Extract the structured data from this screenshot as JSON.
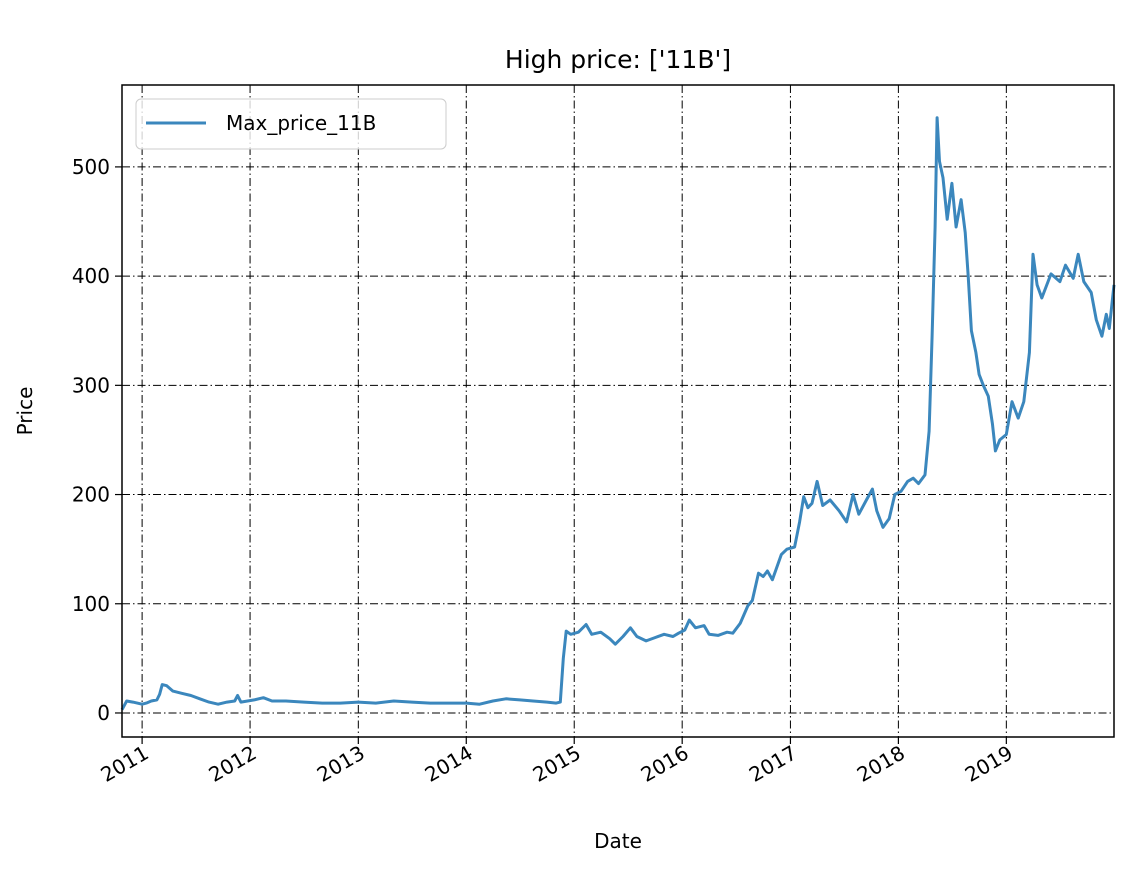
{
  "chart_data": {
    "type": "line",
    "title": "High price: ['11B']",
    "xlabel": "Date",
    "ylabel": "Price",
    "x_type": "date",
    "xlim": [
      "2010-10-25",
      "2019-12-31"
    ],
    "ylim": [
      -22,
      575
    ],
    "x_ticks": [
      "2011-01-01",
      "2012-01-01",
      "2013-01-01",
      "2014-01-01",
      "2015-01-01",
      "2016-01-01",
      "2017-01-01",
      "2018-01-01",
      "2019-01-01"
    ],
    "x_tick_labels": [
      "2011",
      "2012",
      "2013",
      "2014",
      "2015",
      "2016",
      "2017",
      "2018",
      "2019"
    ],
    "y_ticks": [
      0,
      100,
      200,
      300,
      400,
      500
    ],
    "y_tick_labels": [
      "0",
      "100",
      "200",
      "300",
      "400",
      "500"
    ],
    "grid": true,
    "legend_position": "top-left",
    "series_color": "#3b87bd",
    "series": [
      {
        "name": "Max_price_11B",
        "points": [
          [
            "2010-10-25",
            3
          ],
          [
            "2010-11-10",
            11
          ],
          [
            "2010-12-01",
            10
          ],
          [
            "2011-01-01",
            8
          ],
          [
            "2011-01-15",
            9
          ],
          [
            "2011-02-01",
            11
          ],
          [
            "2011-02-20",
            12
          ],
          [
            "2011-03-01",
            17
          ],
          [
            "2011-03-10",
            26
          ],
          [
            "2011-03-25",
            25
          ],
          [
            "2011-04-15",
            20
          ],
          [
            "2011-05-15",
            18
          ],
          [
            "2011-06-15",
            16
          ],
          [
            "2011-07-15",
            13
          ],
          [
            "2011-08-15",
            10
          ],
          [
            "2011-09-15",
            8
          ],
          [
            "2011-10-15",
            10
          ],
          [
            "2011-11-10",
            11
          ],
          [
            "2011-11-20",
            16
          ],
          [
            "2011-12-01",
            10
          ],
          [
            "2012-01-15",
            12
          ],
          [
            "2012-02-15",
            14
          ],
          [
            "2012-03-15",
            11
          ],
          [
            "2012-05-01",
            11
          ],
          [
            "2012-07-01",
            10
          ],
          [
            "2012-09-01",
            9
          ],
          [
            "2012-11-01",
            9
          ],
          [
            "2013-01-01",
            10
          ],
          [
            "2013-03-01",
            9
          ],
          [
            "2013-05-01",
            11
          ],
          [
            "2013-07-01",
            10
          ],
          [
            "2013-09-01",
            9
          ],
          [
            "2013-11-01",
            9
          ],
          [
            "2014-01-01",
            9
          ],
          [
            "2014-02-15",
            8
          ],
          [
            "2014-04-01",
            11
          ],
          [
            "2014-05-15",
            13
          ],
          [
            "2014-07-01",
            12
          ],
          [
            "2014-08-15",
            11
          ],
          [
            "2014-10-01",
            10
          ],
          [
            "2014-11-01",
            9
          ],
          [
            "2014-11-15",
            10
          ],
          [
            "2014-11-25",
            50
          ],
          [
            "2014-12-05",
            75
          ],
          [
            "2014-12-20",
            72
          ],
          [
            "2015-01-15",
            74
          ],
          [
            "2015-02-10",
            81
          ],
          [
            "2015-03-01",
            72
          ],
          [
            "2015-04-01",
            74
          ],
          [
            "2015-05-01",
            68
          ],
          [
            "2015-05-20",
            63
          ],
          [
            "2015-06-15",
            70
          ],
          [
            "2015-07-10",
            78
          ],
          [
            "2015-08-01",
            70
          ],
          [
            "2015-09-01",
            66
          ],
          [
            "2015-10-01",
            69
          ],
          [
            "2015-11-01",
            72
          ],
          [
            "2015-12-01",
            70
          ],
          [
            "2015-12-20",
            73
          ],
          [
            "2016-01-10",
            76
          ],
          [
            "2016-01-25",
            85
          ],
          [
            "2016-02-15",
            78
          ],
          [
            "2016-03-15",
            80
          ],
          [
            "2016-04-01",
            72
          ],
          [
            "2016-05-01",
            71
          ],
          [
            "2016-06-01",
            74
          ],
          [
            "2016-06-20",
            73
          ],
          [
            "2016-07-15",
            82
          ],
          [
            "2016-08-10",
            98
          ],
          [
            "2016-08-25",
            103
          ],
          [
            "2016-09-15",
            128
          ],
          [
            "2016-10-01",
            125
          ],
          [
            "2016-10-15",
            130
          ],
          [
            "2016-11-01",
            122
          ],
          [
            "2016-12-01",
            145
          ],
          [
            "2016-12-20",
            150
          ],
          [
            "2017-01-15",
            152
          ],
          [
            "2017-02-01",
            175
          ],
          [
            "2017-02-15",
            198
          ],
          [
            "2017-03-01",
            188
          ],
          [
            "2017-03-15",
            192
          ],
          [
            "2017-04-01",
            212
          ],
          [
            "2017-04-20",
            190
          ],
          [
            "2017-05-15",
            195
          ],
          [
            "2017-06-15",
            185
          ],
          [
            "2017-07-10",
            175
          ],
          [
            "2017-08-01",
            200
          ],
          [
            "2017-08-20",
            182
          ],
          [
            "2017-09-15",
            195
          ],
          [
            "2017-10-05",
            205
          ],
          [
            "2017-10-20",
            185
          ],
          [
            "2017-11-10",
            170
          ],
          [
            "2017-12-01",
            178
          ],
          [
            "2017-12-20",
            200
          ],
          [
            "2018-01-10",
            203
          ],
          [
            "2018-02-01",
            212
          ],
          [
            "2018-02-20",
            215
          ],
          [
            "2018-03-10",
            210
          ],
          [
            "2018-04-01",
            218
          ],
          [
            "2018-04-15",
            258
          ],
          [
            "2018-04-25",
            345
          ],
          [
            "2018-05-05",
            445
          ],
          [
            "2018-05-12",
            545
          ],
          [
            "2018-05-20",
            505
          ],
          [
            "2018-06-01",
            490
          ],
          [
            "2018-06-15",
            452
          ],
          [
            "2018-07-01",
            485
          ],
          [
            "2018-07-15",
            445
          ],
          [
            "2018-08-01",
            470
          ],
          [
            "2018-08-15",
            440
          ],
          [
            "2018-08-25",
            400
          ],
          [
            "2018-09-05",
            350
          ],
          [
            "2018-09-20",
            330
          ],
          [
            "2018-10-01",
            310
          ],
          [
            "2018-10-15",
            300
          ],
          [
            "2018-11-01",
            290
          ],
          [
            "2018-11-15",
            265
          ],
          [
            "2018-11-25",
            240
          ],
          [
            "2018-12-10",
            250
          ],
          [
            "2019-01-01",
            255
          ],
          [
            "2019-01-20",
            285
          ],
          [
            "2019-02-10",
            270
          ],
          [
            "2019-03-01",
            285
          ],
          [
            "2019-03-20",
            330
          ],
          [
            "2019-04-01",
            420
          ],
          [
            "2019-04-15",
            392
          ],
          [
            "2019-05-01",
            380
          ],
          [
            "2019-06-01",
            402
          ],
          [
            "2019-07-01",
            395
          ],
          [
            "2019-07-20",
            410
          ],
          [
            "2019-08-15",
            398
          ],
          [
            "2019-09-01",
            420
          ],
          [
            "2019-09-20",
            395
          ],
          [
            "2019-10-15",
            385
          ],
          [
            "2019-11-01",
            360
          ],
          [
            "2019-11-20",
            345
          ],
          [
            "2019-12-05",
            365
          ],
          [
            "2019-12-15",
            352
          ],
          [
            "2019-12-31",
            392
          ]
        ]
      }
    ]
  }
}
